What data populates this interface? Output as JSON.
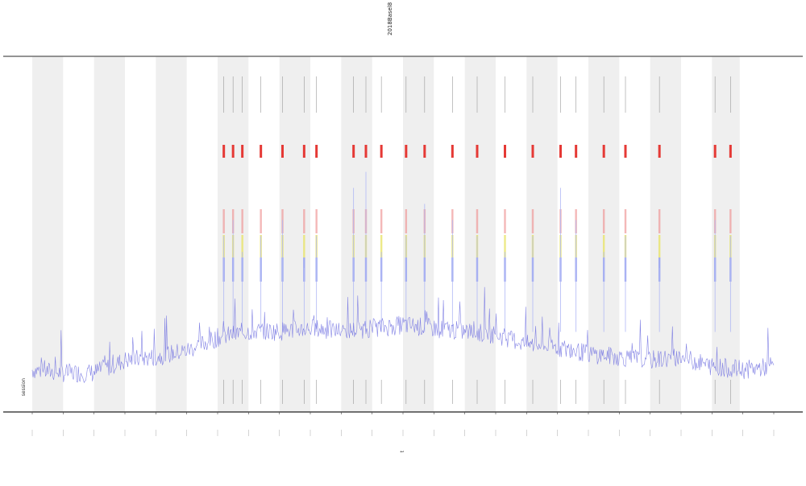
{
  "chart_data": {
    "type": "line",
    "title": "2018Basel8",
    "xlabel": "t",
    "ylabel": "",
    "legend": "session",
    "grid": false,
    "x": [
      0,
      1,
      2,
      3,
      4,
      5,
      6,
      7,
      8,
      9,
      10,
      11,
      12,
      13,
      14,
      15,
      16,
      17,
      18,
      19,
      20,
      21,
      22,
      23,
      24
    ],
    "shaded_bands": [
      [
        0.0,
        1.0
      ],
      [
        2.0,
        3.0
      ],
      [
        4.0,
        5.0
      ],
      [
        6.0,
        7.0
      ],
      [
        8.0,
        9.0
      ],
      [
        10.0,
        11.0
      ],
      [
        12.0,
        13.0
      ],
      [
        14.0,
        15.0
      ],
      [
        16.0,
        17.0
      ],
      [
        18.0,
        19.0
      ],
      [
        20.0,
        21.0
      ],
      [
        22.0,
        22.9
      ]
    ],
    "series": [
      {
        "color": "#7070e0",
        "baseline": [
          0.12,
          0.11,
          0.11,
          0.15,
          0.16,
          0.18,
          0.22,
          0.24,
          0.24,
          0.25,
          0.24,
          0.25,
          0.26,
          0.25,
          0.24,
          0.23,
          0.2,
          0.19,
          0.17,
          0.16,
          0.15,
          0.16,
          0.13,
          0.12,
          0.13
        ]
      }
    ],
    "event_segments": [
      {
        "x": 6.2,
        "h": 0.55
      },
      {
        "x": 6.5,
        "h": 0.6
      },
      {
        "x": 6.8,
        "h": 0.5
      },
      {
        "x": 7.4,
        "h": 0.55
      },
      {
        "x": 8.1,
        "h": 0.6
      },
      {
        "x": 8.8,
        "h": 0.45
      },
      {
        "x": 9.2,
        "h": 0.55
      },
      {
        "x": 10.4,
        "h": 0.7
      },
      {
        "x": 10.8,
        "h": 0.75
      },
      {
        "x": 11.3,
        "h": 0.5
      },
      {
        "x": 12.1,
        "h": 0.55
      },
      {
        "x": 12.7,
        "h": 0.65
      },
      {
        "x": 13.6,
        "h": 0.6
      },
      {
        "x": 14.4,
        "h": 0.55
      },
      {
        "x": 15.3,
        "h": 0.5
      },
      {
        "x": 16.2,
        "h": 0.55
      },
      {
        "x": 17.1,
        "h": 0.7
      },
      {
        "x": 17.6,
        "h": 0.6
      },
      {
        "x": 18.5,
        "h": 0.5
      },
      {
        "x": 19.2,
        "h": 0.55
      },
      {
        "x": 20.3,
        "h": 0.45
      },
      {
        "x": 22.1,
        "h": 0.6
      },
      {
        "x": 22.6,
        "h": 0.55
      }
    ]
  }
}
